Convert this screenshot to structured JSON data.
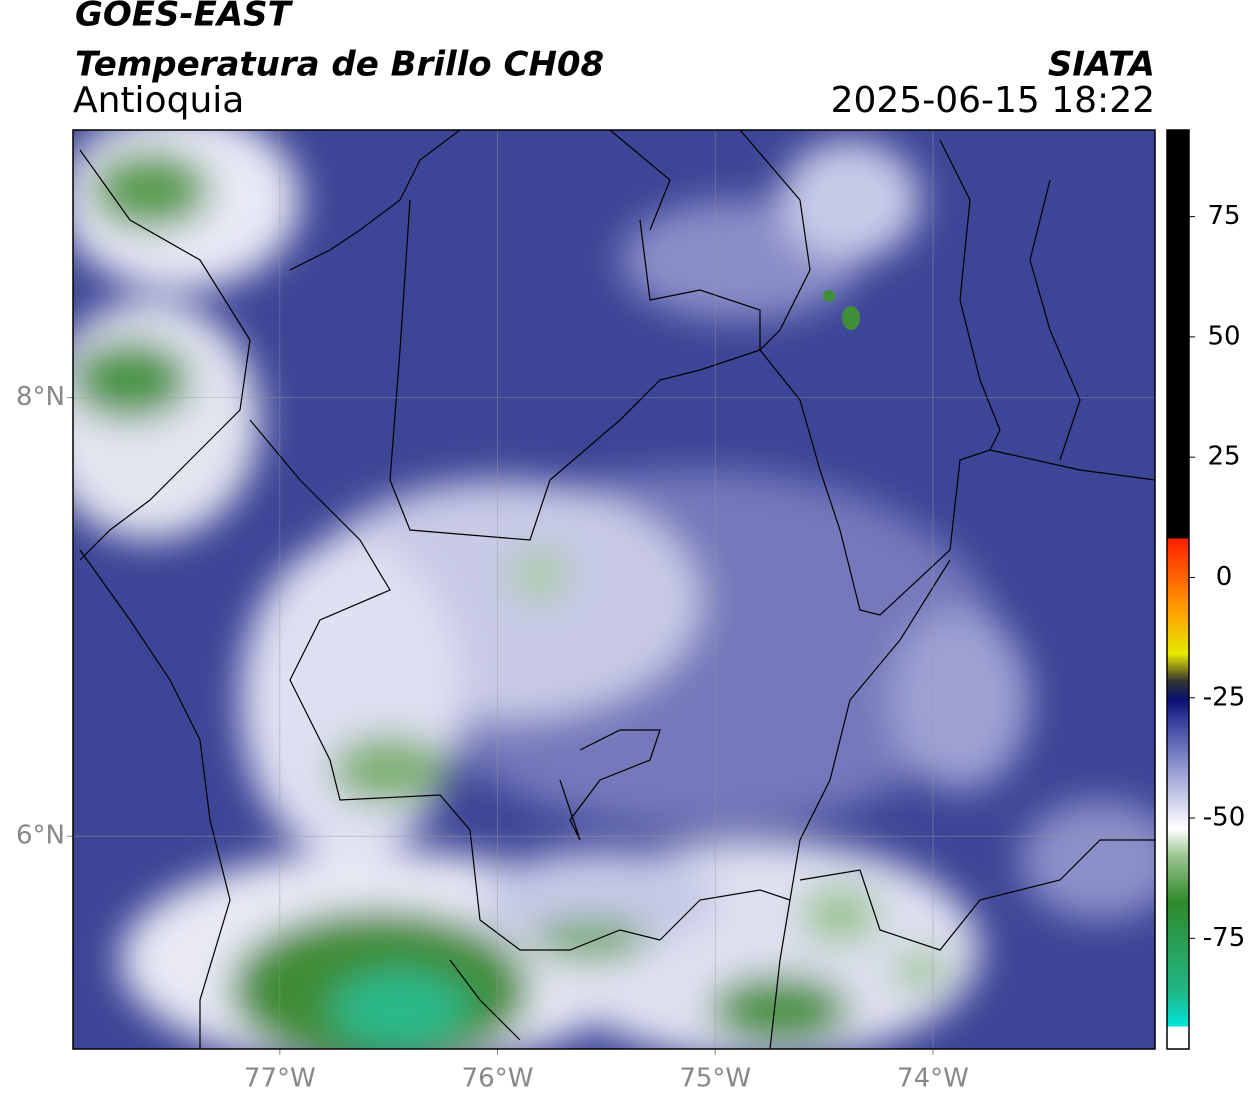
{
  "header": {
    "title": "GOES-EAST",
    "subtitle": "Temperatura de Brillo CH08",
    "region": "Antioquia",
    "source": "SIATA",
    "timestamp": "2025-06-15 18:22"
  },
  "map": {
    "lonlim": [
      -77.95,
      -72.98
    ],
    "latlim": [
      5.03,
      9.22
    ],
    "lonticks": [
      {
        "value": -77,
        "label": "77°W"
      },
      {
        "value": -76,
        "label": "76°W"
      },
      {
        "value": -75,
        "label": "75°W"
      },
      {
        "value": -74,
        "label": "74°W"
      }
    ],
    "latticks": [
      {
        "value": 8,
        "label": "8°N"
      },
      {
        "value": 6,
        "label": "6°N"
      }
    ],
    "grid": true
  },
  "colorbar": {
    "lim": [
      -98,
      93
    ],
    "ticks": [
      75,
      50,
      25,
      0,
      -25,
      -50,
      -75
    ]
  }
}
